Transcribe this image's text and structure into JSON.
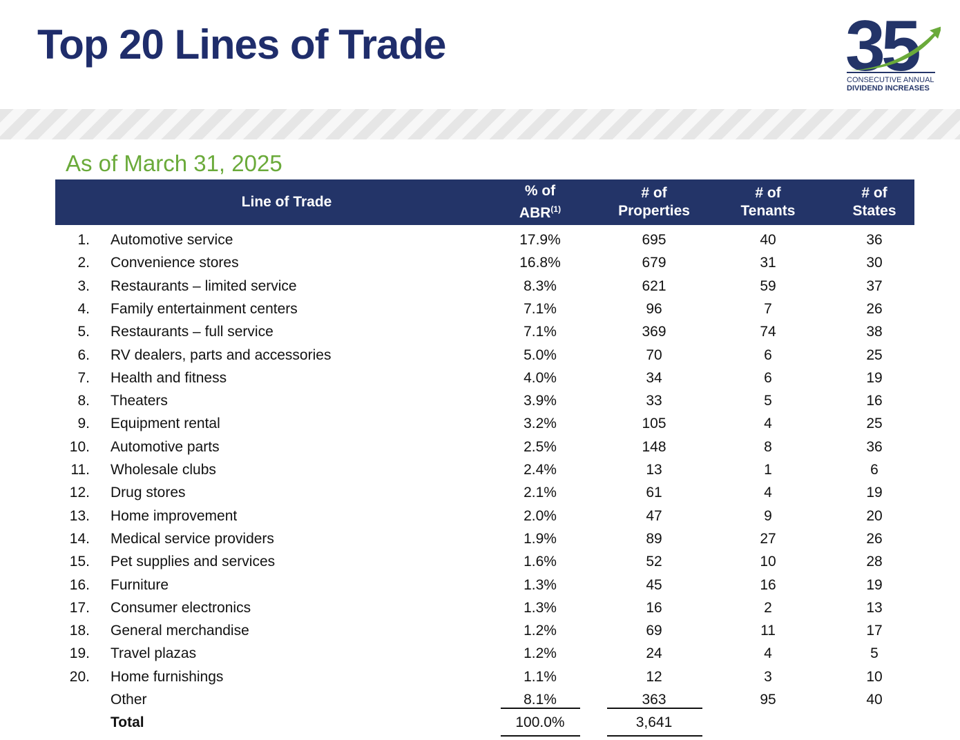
{
  "header": {
    "title": "Top 20 Lines of Trade",
    "logo": {
      "number": "35",
      "line1": "CONSECUTIVE ANNUAL",
      "line2": "DIVIDEND INCREASES"
    }
  },
  "subtitle": "As of March 31, 2025",
  "table": {
    "columns": [
      [
        "Line of Trade"
      ],
      [
        "% of",
        "ABR"
      ],
      [
        "# of",
        "Properties"
      ],
      [
        "# of",
        "Tenants"
      ],
      [
        "# of",
        "States"
      ]
    ],
    "footnote_mark": "(1)",
    "rows": [
      [
        "1.",
        "Automotive service",
        "17.9%",
        "695",
        "40",
        "36"
      ],
      [
        "2.",
        "Convenience stores",
        "16.8%",
        "679",
        "31",
        "30"
      ],
      [
        "3.",
        "Restaurants – limited service",
        "8.3%",
        "621",
        "59",
        "37"
      ],
      [
        "4.",
        "Family entertainment centers",
        "7.1%",
        "96",
        "7",
        "26"
      ],
      [
        "5.",
        "Restaurants – full service",
        "7.1%",
        "369",
        "74",
        "38"
      ],
      [
        "6.",
        "RV dealers, parts and accessories",
        "5.0%",
        "70",
        "6",
        "25"
      ],
      [
        "7.",
        "Health and fitness",
        "4.0%",
        "34",
        "6",
        "19"
      ],
      [
        "8.",
        "Theaters",
        "3.9%",
        "33",
        "5",
        "16"
      ],
      [
        "9.",
        "Equipment rental",
        "3.2%",
        "105",
        "4",
        "25"
      ],
      [
        "10.",
        "Automotive parts",
        "2.5%",
        "148",
        "8",
        "36"
      ],
      [
        "11.",
        "Wholesale clubs",
        "2.4%",
        "13",
        "1",
        "6"
      ],
      [
        "12.",
        "Drug stores",
        "2.1%",
        "61",
        "4",
        "19"
      ],
      [
        "13.",
        "Home improvement",
        "2.0%",
        "47",
        "9",
        "20"
      ],
      [
        "14.",
        "Medical service providers",
        "1.9%",
        "89",
        "27",
        "26"
      ],
      [
        "15.",
        "Pet supplies and services",
        "1.6%",
        "52",
        "10",
        "28"
      ],
      [
        "16.",
        "Furniture",
        "1.3%",
        "45",
        "16",
        "19"
      ],
      [
        "17.",
        "Consumer electronics",
        "1.3%",
        "16",
        "2",
        "13"
      ],
      [
        "18.",
        "General merchandise",
        "1.2%",
        "69",
        "11",
        "17"
      ],
      [
        "19.",
        "Travel plazas",
        "1.2%",
        "24",
        "4",
        "5"
      ],
      [
        "20.",
        "Home furnishings",
        "1.1%",
        "12",
        "3",
        "10"
      ]
    ],
    "other": [
      "Other",
      "8.1%",
      "363",
      "95",
      "40"
    ],
    "total": [
      "Total",
      "100.0%",
      "3,641"
    ]
  }
}
